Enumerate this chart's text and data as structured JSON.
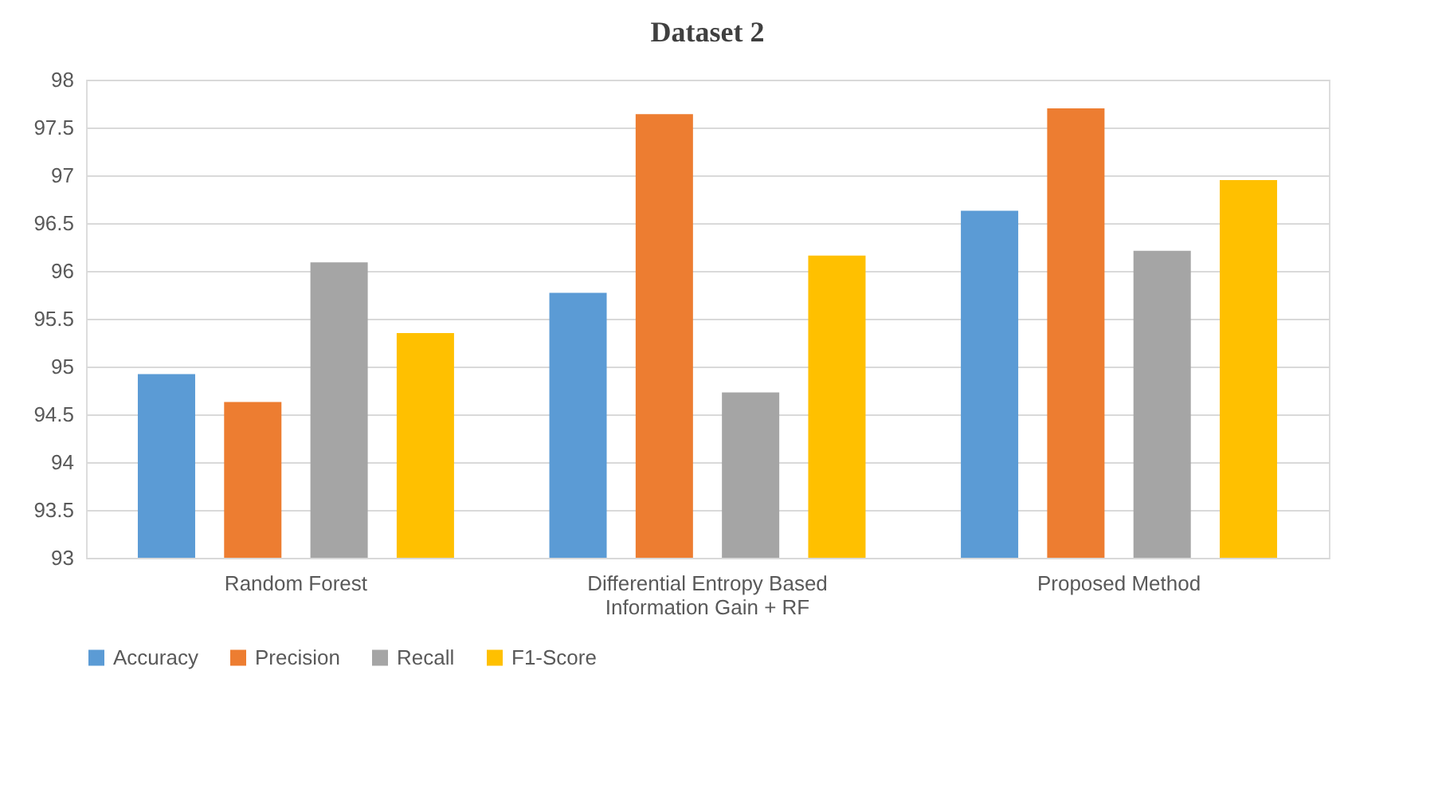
{
  "chart_data": {
    "type": "bar",
    "title": "Dataset 2",
    "categories": [
      "Random Forest",
      "Differential Entropy Based Information Gain + RF",
      "Proposed Method"
    ],
    "series": [
      {
        "name": "Accuracy",
        "color": "#5b9bd5",
        "values": [
          94.92,
          95.77,
          96.63
        ]
      },
      {
        "name": "Precision",
        "color": "#ed7d31",
        "values": [
          94.63,
          97.64,
          97.7
        ]
      },
      {
        "name": "Recall",
        "color": "#a5a5a5",
        "values": [
          96.09,
          94.73,
          96.21
        ]
      },
      {
        "name": "F1-Score",
        "color": "#ffc000",
        "values": [
          95.35,
          96.16,
          96.95
        ]
      }
    ],
    "ylim": [
      93,
      98
    ],
    "yticks": [
      93,
      93.5,
      94,
      94.5,
      95,
      95.5,
      96,
      96.5,
      97,
      97.5,
      98
    ],
    "grid": "y",
    "legend": "bottom"
  }
}
